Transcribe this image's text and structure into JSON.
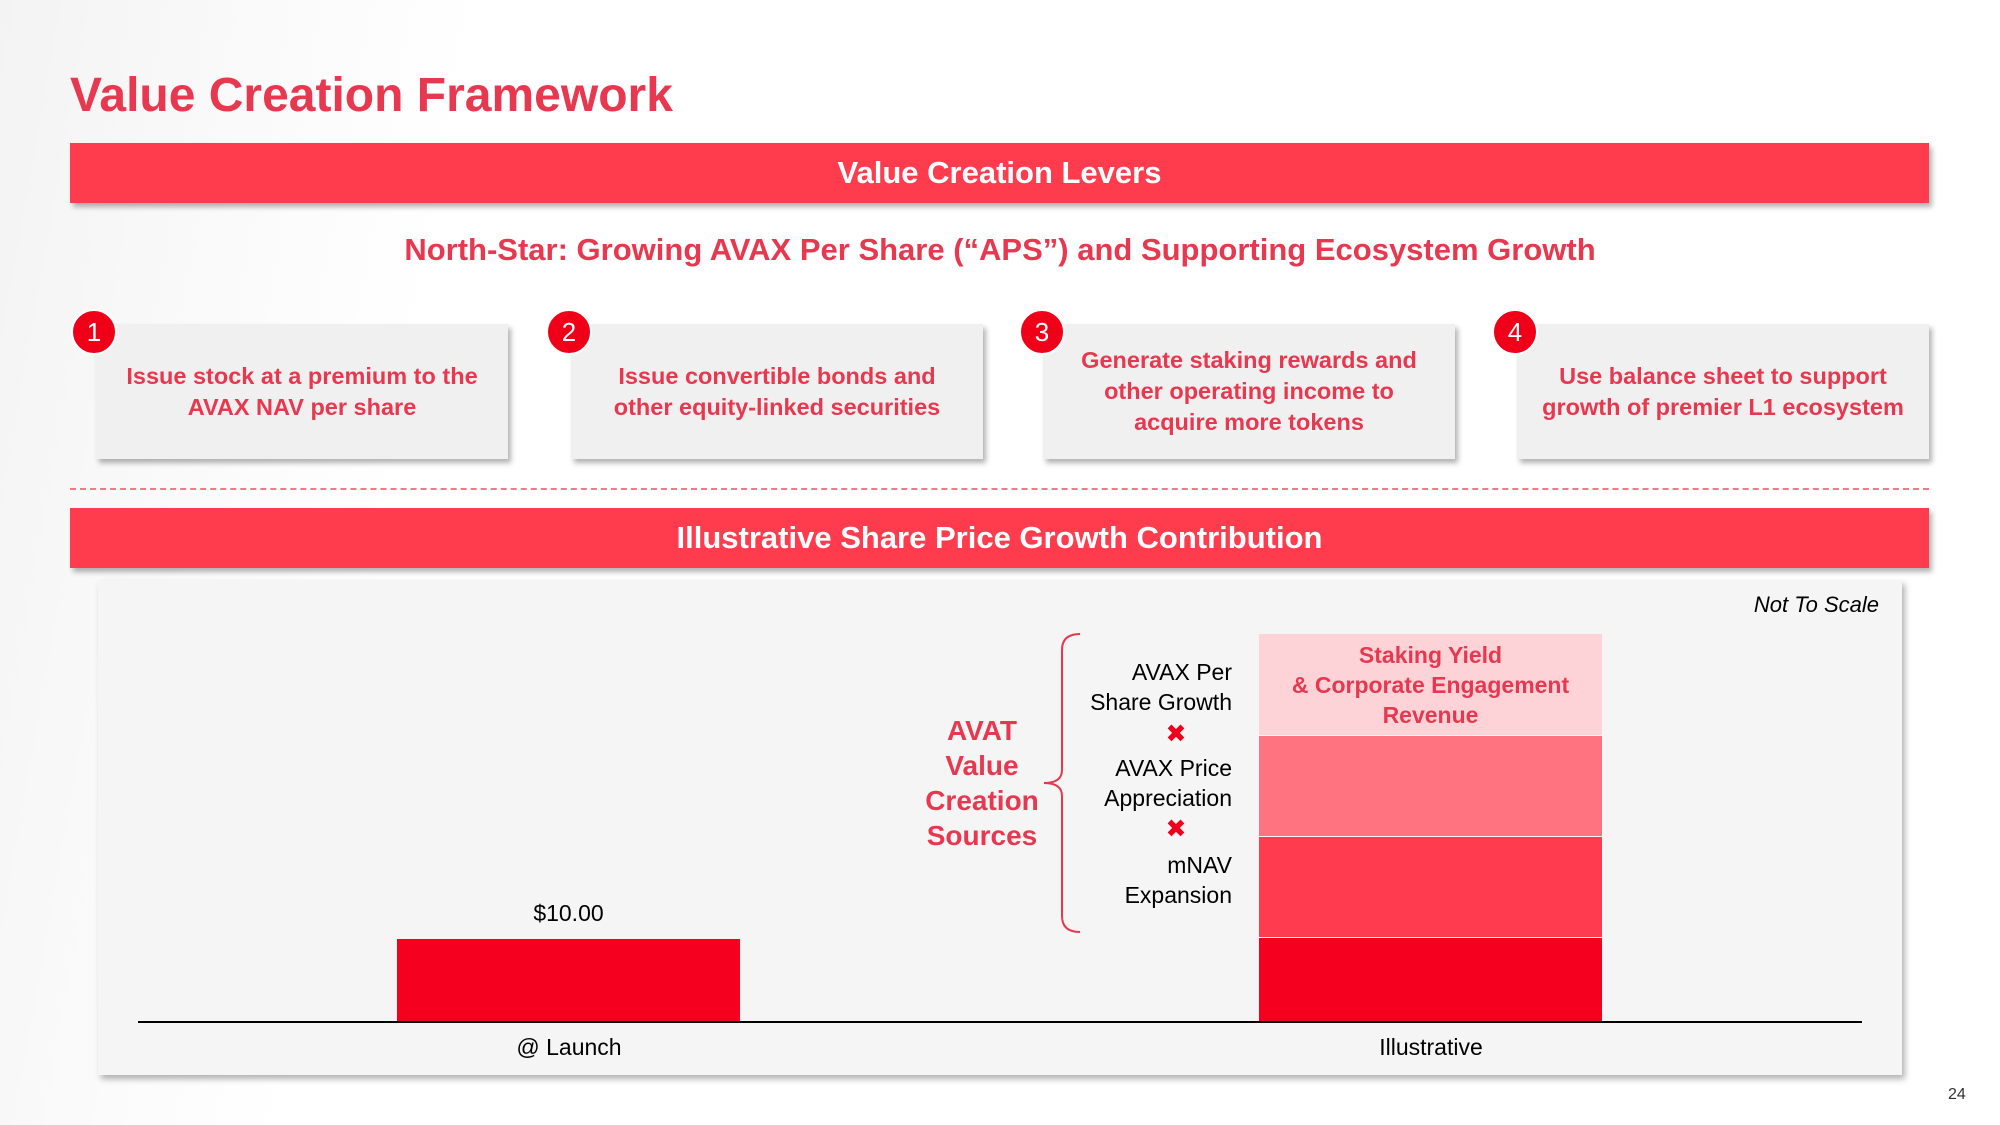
{
  "title": "Value Creation Framework",
  "levers_banner": "Value Creation Levers",
  "north_star": "North-Star: Growing AVAX Per Share (“APS”) and Supporting Ecosystem Growth",
  "levers": [
    {
      "number": "1",
      "lines": [
        "Issue stock at a premium to the",
        "AVAX NAV per share"
      ]
    },
    {
      "number": "2",
      "lines": [
        "Issue convertible bonds and",
        "other equity-linked securities"
      ]
    },
    {
      "number": "3",
      "lines": [
        "Generate staking rewards and",
        "other operating income to",
        "acquire more tokens"
      ]
    },
    {
      "number": "4",
      "lines": [
        "Use balance sheet to support",
        "growth of premier L1 ecosystem"
      ]
    }
  ],
  "chart_banner": "Illustrative Share Price Growth Contribution",
  "chart": {
    "note": "Not To Scale",
    "launch": {
      "label": "@ Launch",
      "value_label": "$10.00"
    },
    "illustrative": {
      "label": "Illustrative",
      "top_segment": [
        "Staking Yield",
        "& Corporate Engagement",
        "Revenue"
      ]
    },
    "sources_title": [
      "AVAT",
      "Value",
      "Creation",
      "Sources"
    ],
    "sources": [
      [
        "AVAX Per",
        "Share Growth"
      ],
      [
        "AVAX Price",
        "Appreciation"
      ],
      [
        "mNAV",
        "Expansion"
      ]
    ],
    "operator": "✖"
  },
  "page_number": "24"
}
